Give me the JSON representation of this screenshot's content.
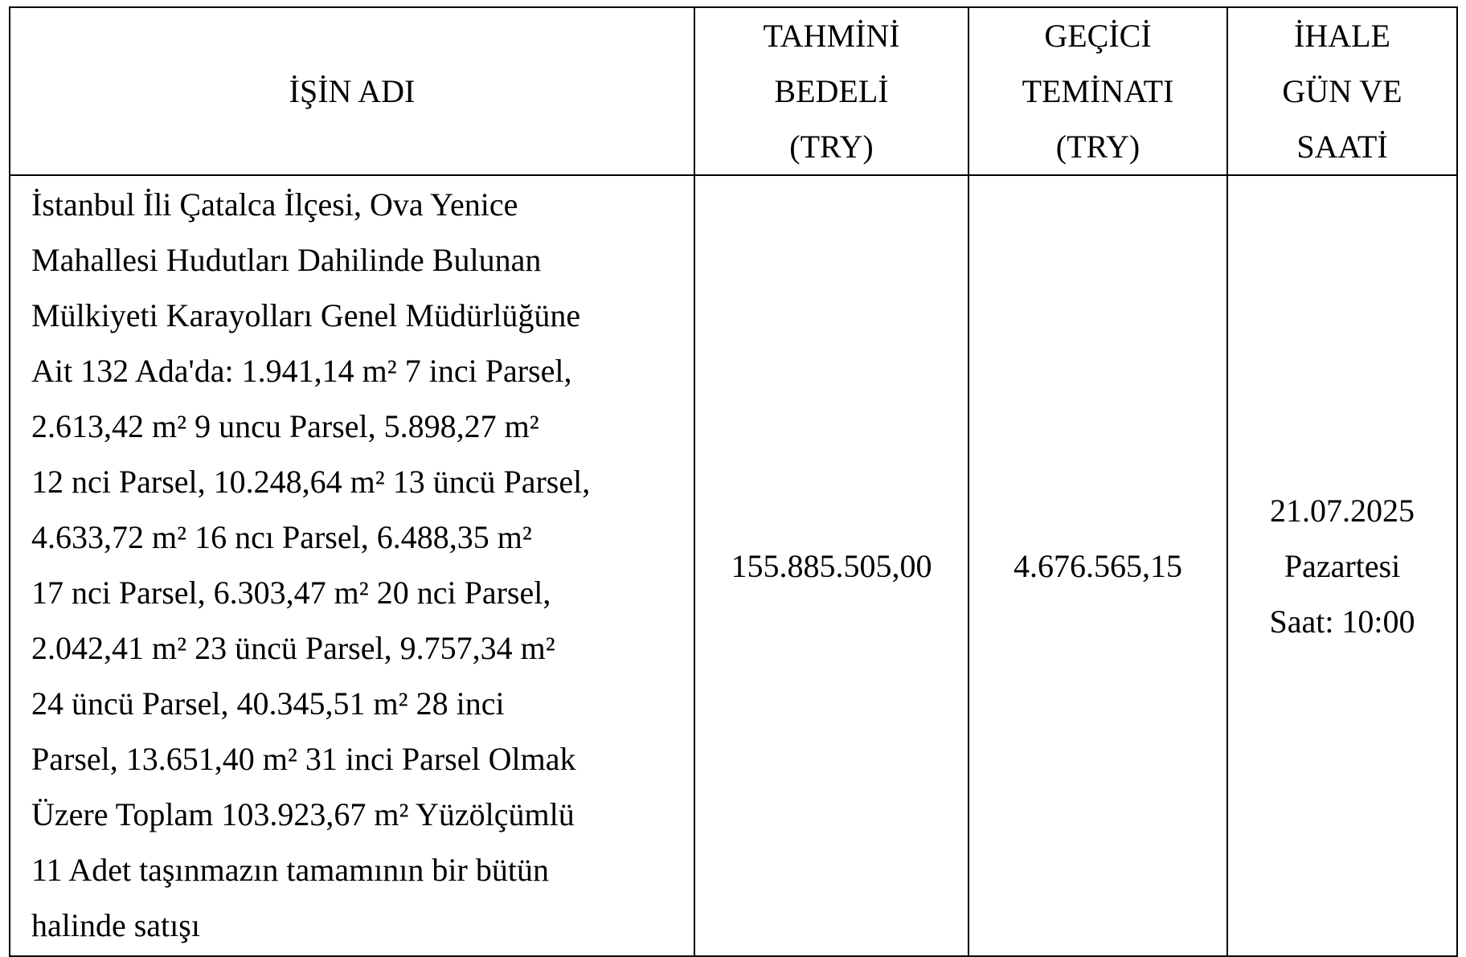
{
  "table": {
    "headers": [
      {
        "lines": [
          "İŞİN ADI"
        ]
      },
      {
        "lines": [
          "TAHMİNİ",
          "BEDELİ",
          "(TRY)"
        ]
      },
      {
        "lines": [
          "GEÇİCİ",
          "TEMİNATI",
          "(TRY)"
        ]
      },
      {
        "lines": [
          "İHALE",
          "GÜN VE",
          "SAATİ"
        ]
      }
    ],
    "row": {
      "description_lines": [
        "İstanbul İli Çatalca İlçesi, Ova Yenice",
        "Mahallesi Hudutları Dahilinde Bulunan",
        "Mülkiyeti Karayolları Genel Müdürlüğüne",
        "Ait 132 Ada'da: 1.941,14 m² 7 inci Parsel,",
        "2.613,42 m² 9 uncu Parsel, 5.898,27 m²",
        "12 nci Parsel, 10.248,64 m² 13 üncü Parsel,",
        "4.633,72 m² 16 ncı Parsel, 6.488,35 m²",
        "17 nci Parsel, 6.303,47 m² 20 nci Parsel,",
        "2.042,41 m² 23 üncü Parsel, 9.757,34 m²",
        "24 üncü Parsel, 40.345,51 m² 28 inci",
        "Parsel, 13.651,40 m² 31 inci Parsel Olmak",
        "Üzere Toplam 103.923,67 m² Yüzölçümlü",
        "11 Adet taşınmazın tamamının bir bütün",
        "halinde satışı"
      ],
      "estimated_price": "155.885.505,00",
      "temporary_guarantee": "4.676.565,15",
      "tender_date_lines": [
        "21.07.2025",
        "Pazartesi",
        "Saat: 10:00"
      ]
    }
  }
}
